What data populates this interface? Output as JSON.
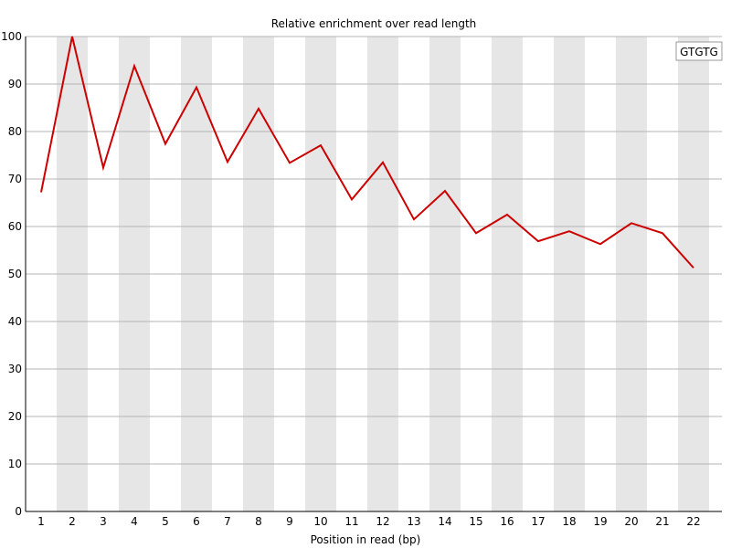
{
  "chart_data": {
    "type": "line",
    "title": "Relative enrichment over read length",
    "xlabel": "Position in read (bp)",
    "ylabel": "",
    "x": [
      1,
      2,
      3,
      4,
      5,
      6,
      7,
      8,
      9,
      10,
      11,
      12,
      13,
      14,
      15,
      16,
      17,
      18,
      19,
      20,
      21,
      22
    ],
    "ylim": [
      0,
      100
    ],
    "yticks": [
      0,
      10,
      20,
      30,
      40,
      50,
      60,
      70,
      80,
      90,
      100
    ],
    "series": [
      {
        "name": "GTGTG",
        "color": "#cc0000",
        "values": [
          67.2,
          100,
          72.4,
          93.8,
          77.4,
          89.3,
          73.6,
          84.8,
          73.4,
          77.1,
          65.7,
          73.5,
          61.5,
          67.5,
          58.6,
          62.5,
          56.9,
          59.0,
          56.3,
          60.7,
          58.6,
          51.3
        ]
      }
    ],
    "grid": true,
    "alternating_column_shading": true,
    "shade_color": "#e6e6e6",
    "legend_position": "top-right"
  }
}
